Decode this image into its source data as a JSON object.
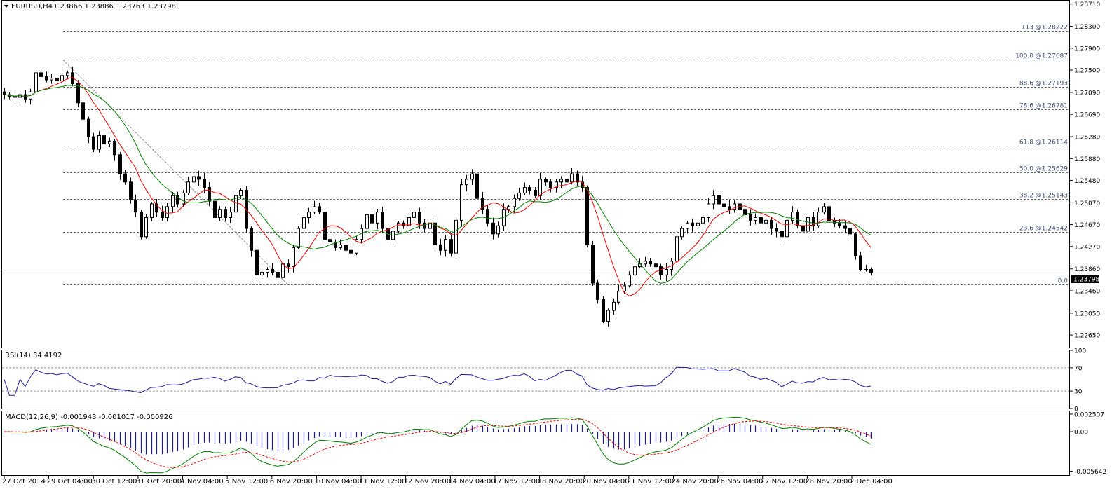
{
  "main": {
    "symbol_label": "EURUSD,H4",
    "ohlc_label": "1.23866  1.23886  1.23763  1.23798",
    "current_price_label": "1.23798"
  },
  "rsi_panel": {
    "label": "RSI(14) 34.4192"
  },
  "macd_panel": {
    "label": "MACD(12,26,9) -0.001943 -0.001017 -0.000926"
  },
  "chart_data": [
    {
      "type": "candlestick",
      "title": "EURUSD,H4",
      "ylim": [
        1.2242,
        1.2877
      ],
      "y_ticks": [
        "1.28710",
        "1.28300",
        "1.27900",
        "1.27500",
        "1.27090",
        "1.26690",
        "1.26280",
        "1.25880",
        "1.25480",
        "1.25070",
        "1.24670",
        "1.24270",
        "1.23860",
        "1.23460",
        "1.23050",
        "1.22650"
      ],
      "x_labels": [
        "27 Oct 2014",
        "29 Oct 04:00",
        "30 Oct 12:00",
        "31 Oct 20:00",
        "4 Nov 04:00",
        "5 Nov 12:00",
        "6 Nov 20:00",
        "10 Nov 04:00",
        "11 Nov 12:00",
        "12 Nov 20:00",
        "14 Nov 04:00",
        "17 Nov 12:00",
        "18 Nov 20:00",
        "20 Nov 04:00",
        "21 Nov 12:00",
        "24 Nov 20:00",
        "26 Nov 04:00",
        "27 Nov 12:00",
        "28 Nov 20:00",
        "2 Dec 04:00"
      ],
      "close_series": [
        1.2705,
        1.2702,
        1.27,
        1.2705,
        1.2697,
        1.271,
        1.2745,
        1.2738,
        1.2732,
        1.2735,
        1.273,
        1.274,
        1.2745,
        1.2725,
        1.269,
        1.266,
        1.2628,
        1.2605,
        1.263,
        1.2615,
        1.262,
        1.2595,
        1.256,
        1.2545,
        1.2512,
        1.249,
        1.2445,
        1.248,
        1.2505,
        1.249,
        1.248,
        1.25,
        1.252,
        1.2505,
        1.2525,
        1.2545,
        1.2555,
        1.255,
        1.2535,
        1.251,
        1.248,
        1.2495,
        1.248,
        1.249,
        1.252,
        1.253,
        1.246,
        1.242,
        1.2375,
        1.238,
        1.2385,
        1.238,
        1.237,
        1.2395,
        1.239,
        1.2425,
        1.246,
        1.248,
        1.249,
        1.25,
        1.249,
        1.244,
        1.2435,
        1.2425,
        1.243,
        1.242,
        1.2415,
        1.244,
        1.246,
        1.2485,
        1.247,
        1.249,
        1.246,
        1.244,
        1.2455,
        1.247,
        1.2465,
        1.248,
        1.249,
        1.247,
        1.246,
        1.247,
        1.243,
        1.242,
        1.244,
        1.2415,
        1.2475,
        1.254,
        1.255,
        1.256,
        1.2515,
        1.2495,
        1.247,
        1.245,
        1.2465,
        1.2495,
        1.25,
        1.2515,
        1.2525,
        1.2535,
        1.253,
        1.252,
        1.255,
        1.2545,
        1.2535,
        1.2545,
        1.255,
        1.2545,
        1.256,
        1.2545,
        1.2535,
        1.243,
        1.236,
        1.233,
        1.229,
        1.231,
        1.2325,
        1.2345,
        1.2355,
        1.2375,
        1.239,
        1.2395,
        1.24,
        1.2395,
        1.239,
        1.2375,
        1.2385,
        1.24,
        1.2445,
        1.246,
        1.247,
        1.2465,
        1.247,
        1.248,
        1.2505,
        1.252,
        1.2505,
        1.25,
        1.2495,
        1.2505,
        1.2495,
        1.2485,
        1.2475,
        1.248,
        1.247,
        1.2475,
        1.246,
        1.2455,
        1.2445,
        1.2475,
        1.249,
        1.2465,
        1.2455,
        1.248,
        1.2465,
        1.249,
        1.25,
        1.2475,
        1.247,
        1.2465,
        1.246,
        1.245,
        1.241,
        1.2385,
        1.2385,
        1.238
      ],
      "fib_levels": [
        {
          "label": "113   @1.28222",
          "y": 1.28222
        },
        {
          "label": "100.0   @1.27687",
          "y": 1.27687
        },
        {
          "label": "88.6   @1.27193",
          "y": 1.27193
        },
        {
          "label": "78.6   @1.26781",
          "y": 1.26781
        },
        {
          "label": "61.8   @1.26114",
          "y": 1.26114
        },
        {
          "label": "50.0   @1.25629",
          "y": 1.25629
        },
        {
          "label": "38.2   @1.25143",
          "y": 1.25143
        },
        {
          "label": "23.6   @1.24542",
          "y": 1.24542
        },
        {
          "label": "0.0",
          "y": 1.2358
        }
      ],
      "current_price": 1.23798
    },
    {
      "type": "line",
      "title": "RSI(14) 34.4192",
      "ylim": [
        0,
        100
      ],
      "y_ticks": [
        "100",
        "70",
        "30",
        "0"
      ],
      "levels": [
        70,
        30
      ]
    },
    {
      "type": "line",
      "title": "MACD(12,26,9) -0.001943 -0.001017 -0.000926",
      "ylim": [
        -0.0062,
        0.0029
      ],
      "y_ticks": [
        "0.002507",
        "0.00",
        "-0.005642"
      ]
    }
  ],
  "colors": {
    "bull_candle": "#ffffff",
    "bear_candle": "#000000",
    "fast_ma": "#ff0000",
    "slow_ma": "#008000",
    "rsi_line": "#1e1e9c",
    "macd_hist": "#1a1aa8",
    "macd_signal": "#ff0000",
    "macd_main": "#008000"
  }
}
